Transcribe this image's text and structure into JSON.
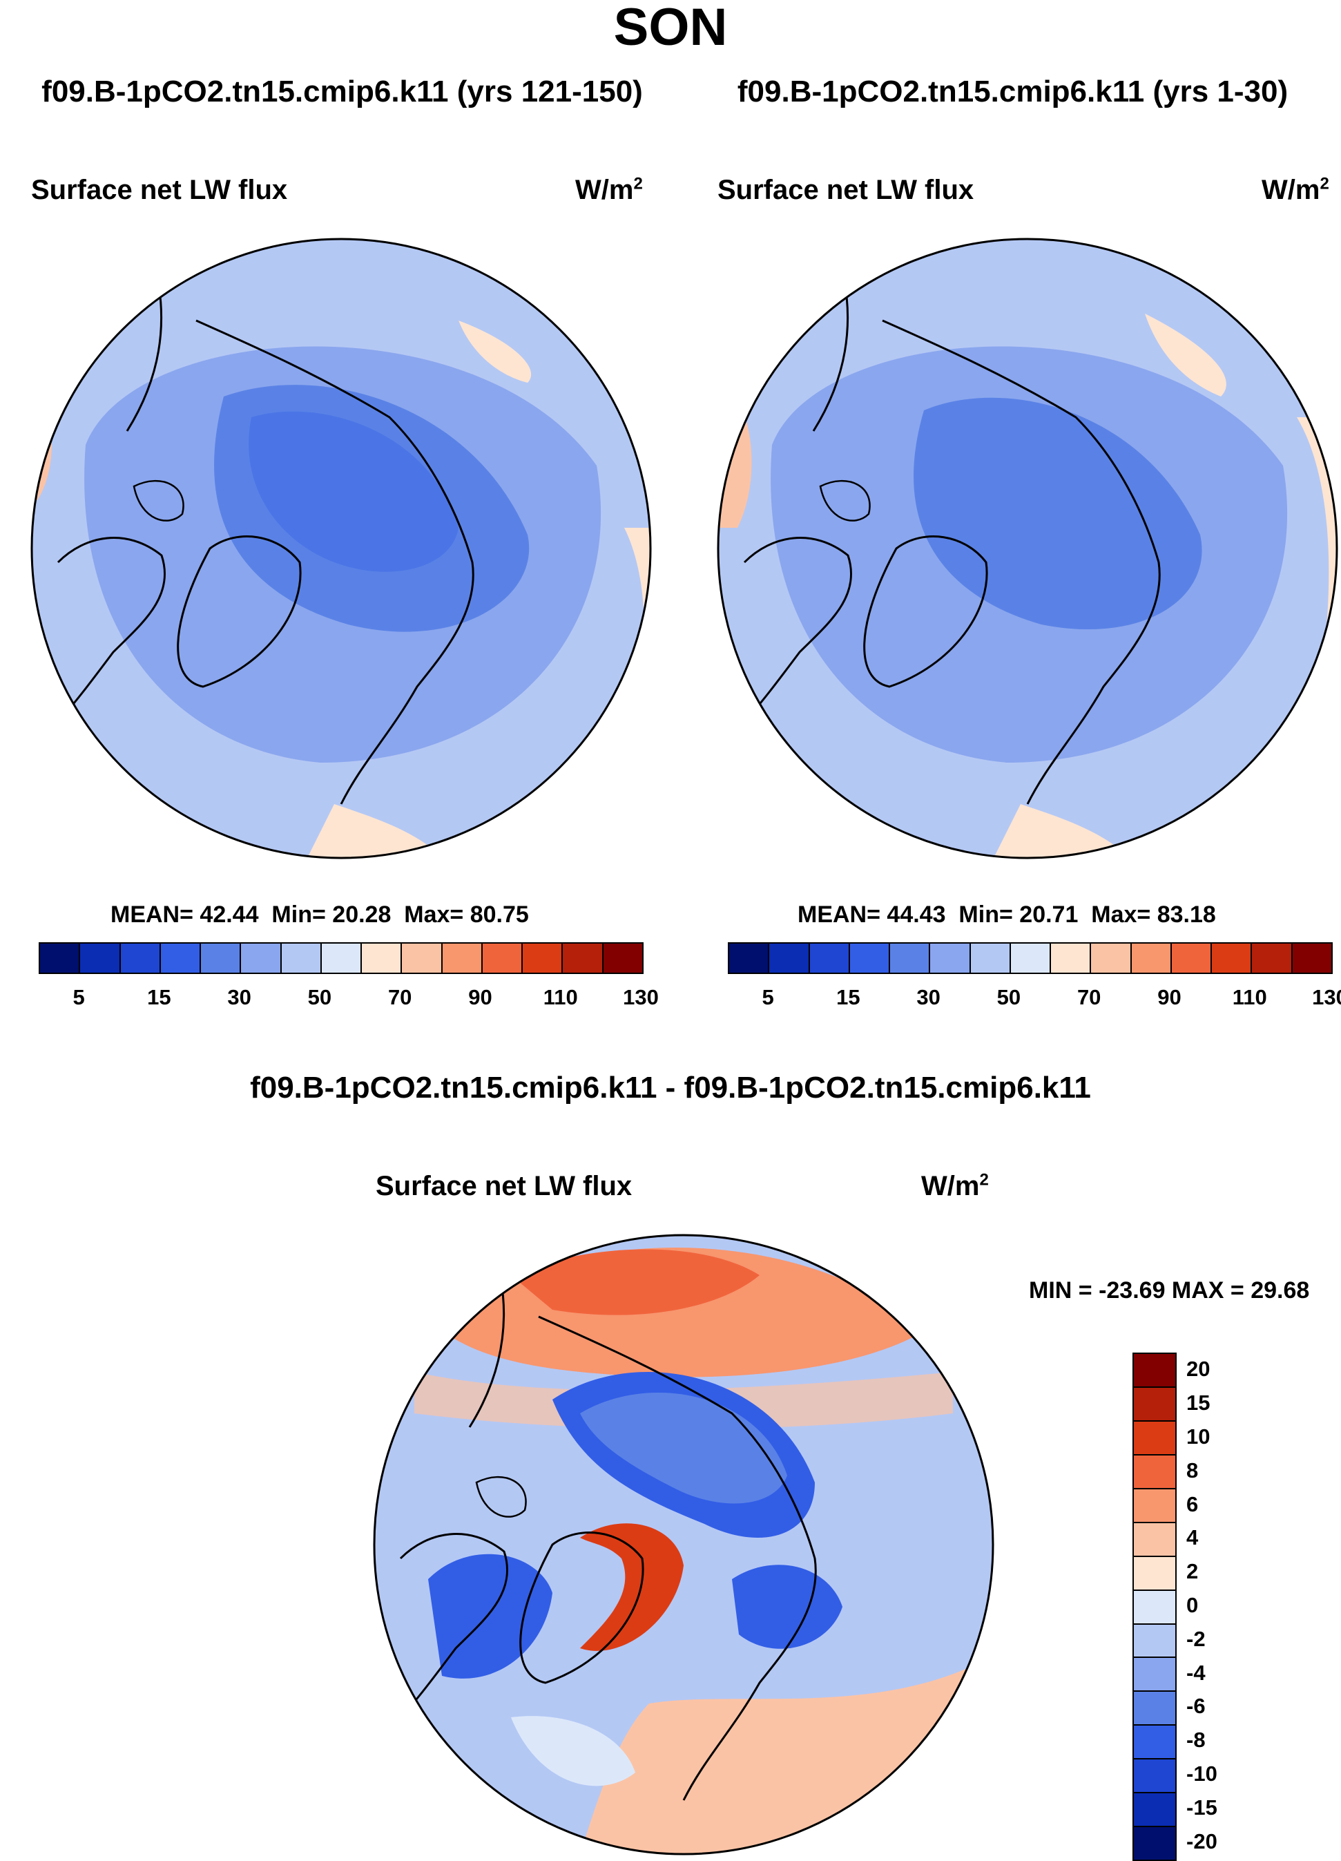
{
  "title": "SON",
  "panels": [
    {
      "case": "f09.B-1pCO2.tn15.cmip6.k11 (yrs 121-150)",
      "variable": "Surface net LW flux",
      "units_base": "W/m",
      "units_exp": "2",
      "stats": {
        "mean_label": "MEAN=",
        "mean": "42.44",
        "min_label": "Min=",
        "min": "20.28",
        "max_label": "Max=",
        "max": "80.75"
      }
    },
    {
      "case": "f09.B-1pCO2.tn15.cmip6.k11 (yrs 1-30)",
      "variable": "Surface net LW flux",
      "units_base": "W/m",
      "units_exp": "2",
      "stats": {
        "mean_label": "MEAN=",
        "mean": "44.43",
        "min_label": "Min=",
        "min": "20.71",
        "max_label": "Max=",
        "max": "83.18"
      }
    }
  ],
  "colorbar": {
    "colors": [
      "#000f6e",
      "#0a2db4",
      "#1e46d2",
      "#325ee6",
      "#5a82e6",
      "#8aa6ee",
      "#b4c8f4",
      "#dce8fa",
      "#fde5d2",
      "#fbc3a5",
      "#f8966e",
      "#f0643c",
      "#dc3c14",
      "#b4200a",
      "#820000"
    ],
    "tick_labels": [
      "5",
      "15",
      "30",
      "50",
      "70",
      "90",
      "110",
      "130"
    ]
  },
  "difference": {
    "title": "f09.B-1pCO2.tn15.cmip6.k11 - f09.B-1pCO2.tn15.cmip6.k11",
    "variable": "Surface net LW flux",
    "units_base": "W/m",
    "units_exp": "2",
    "minmax": "MIN = -23.69 MAX =  29.68",
    "colorbar_colors": [
      "#820000",
      "#b4200a",
      "#dc3c14",
      "#f0643c",
      "#f8966e",
      "#fbc3a5",
      "#fde5d2",
      "#dce8fa",
      "#b4c8f4",
      "#8aa6ee",
      "#5a82e6",
      "#325ee6",
      "#1e46d2",
      "#0a2db4",
      "#000f6e"
    ],
    "tick_labels": [
      "20",
      "15",
      "10",
      "8",
      "6",
      "4",
      "2",
      "0",
      "-2",
      "-4",
      "-6",
      "-8",
      "-10",
      "-15",
      "-20"
    ]
  }
}
